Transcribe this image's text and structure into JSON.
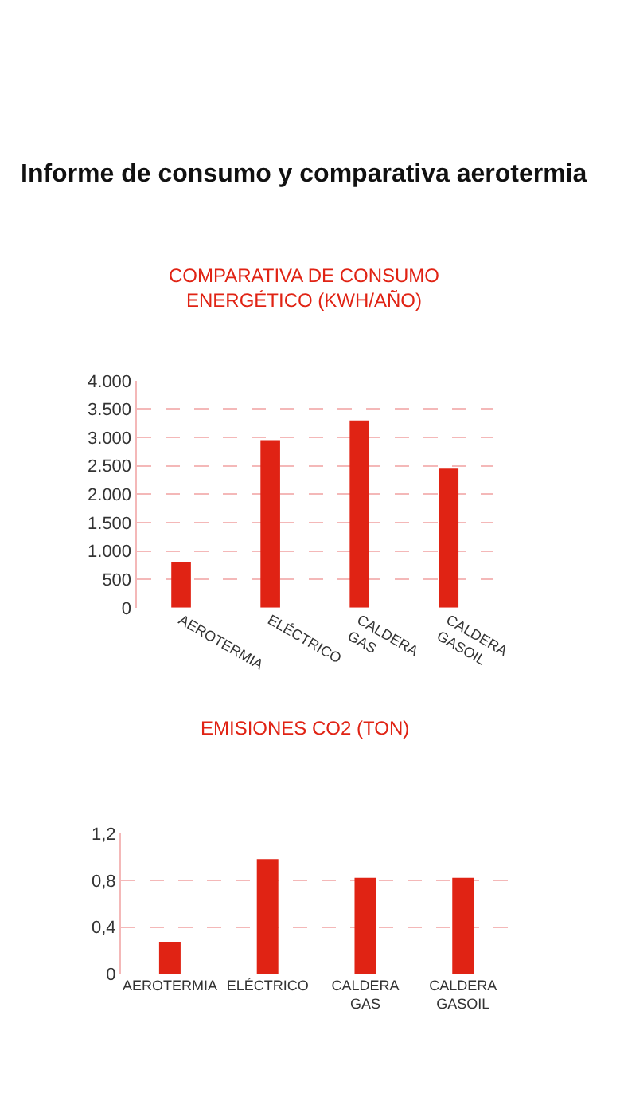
{
  "chart_data": [
    {
      "type": "bar",
      "title": "Informe de consumo y comparativa aerotermia",
      "subtitle": "COMPARATIVA DE CONSUMO\nENERGÉTICO (KWH/AÑO)",
      "categories": [
        "AEROTERMIA",
        "ELÉCTRICO",
        "CALDERA\nGAS",
        "CALDERA\nGASOIL"
      ],
      "values": [
        800,
        2950,
        3300,
        2450
      ],
      "color": "#e02314",
      "ylim": [
        0,
        4000
      ],
      "yticks": [
        0,
        500,
        {
          "value": 1000,
          "label": "1.000"
        },
        {
          "value": 1500,
          "label": "1.500"
        },
        {
          "value": 2000,
          "label": "2.000"
        },
        {
          "value": 2500,
          "label": "2.500"
        },
        {
          "value": 3000,
          "label": "3.000"
        },
        {
          "value": 3500,
          "label": "3.500"
        },
        {
          "value": 4000,
          "label": "4.000"
        }
      ],
      "grid": "y"
    },
    {
      "type": "bar",
      "title": "EMISIONES CO2 (TON)",
      "categories": [
        "AEROTERMIA",
        "ELÉCTRICO",
        "CALDERA\nGAS",
        "CALDERA\nGASOIL"
      ],
      "values": [
        0.27,
        0.98,
        0.82,
        0.82
      ],
      "color": "#e02314",
      "ylim": [
        0,
        1.2
      ],
      "yticks": [
        0,
        {
          "value": 0.4,
          "label": "0,4"
        },
        {
          "value": 0.8,
          "label": "0,8"
        },
        {
          "value": 1.2,
          "label": "1,2"
        }
      ],
      "grid": "y"
    }
  ]
}
